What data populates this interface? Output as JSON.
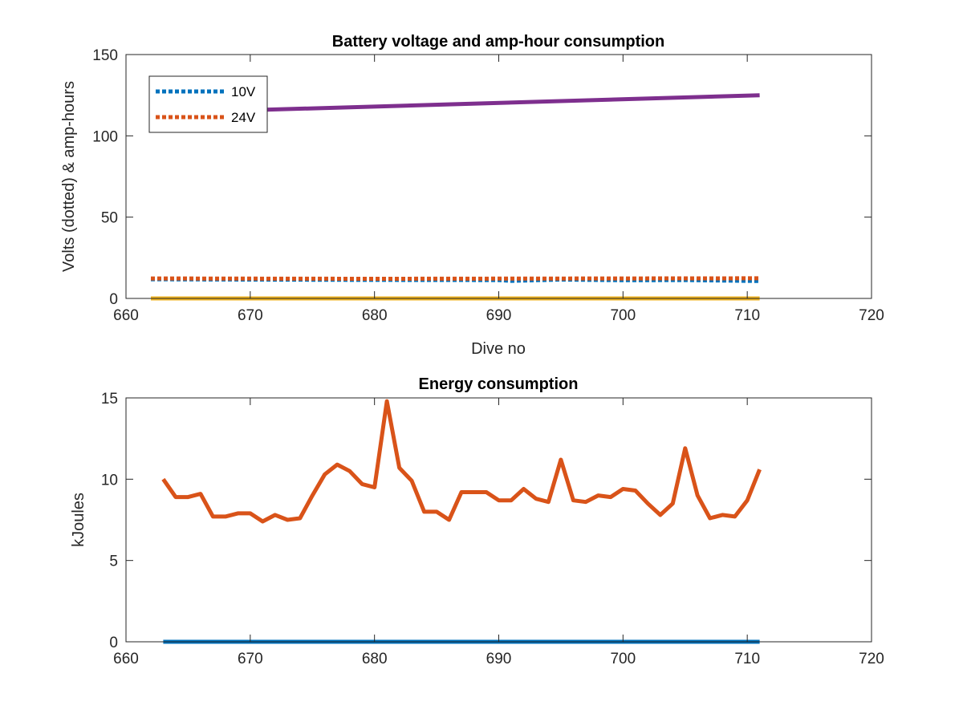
{
  "chart_data": [
    {
      "type": "line",
      "title": "Battery voltage and amp-hour consumption",
      "xlabel": "Dive no",
      "ylabel": "Volts (dotted) & amp-hours",
      "xlim": [
        660,
        720
      ],
      "ylim": [
        0,
        150
      ],
      "xticks": [
        660,
        670,
        680,
        690,
        700,
        710,
        720
      ],
      "yticks": [
        0,
        50,
        100,
        150
      ],
      "legend_position": "top-left",
      "series": [
        {
          "name": "10V",
          "style": "dotted",
          "color": "#0072BD",
          "x": [
            662,
            670,
            680,
            690,
            691,
            695,
            700,
            705,
            711
          ],
          "y": [
            11.8,
            11.6,
            11.4,
            11.3,
            10.8,
            11.6,
            11.2,
            11.3,
            10.7
          ]
        },
        {
          "name": "24V",
          "style": "dotted",
          "color": "#D95319",
          "x": [
            662,
            670,
            680,
            690,
            700,
            711
          ],
          "y": [
            12.3,
            12.2,
            12.1,
            12.2,
            12.3,
            12.4
          ]
        },
        {
          "style": "solid",
          "color": "#7E2F8E",
          "x": [
            662,
            711
          ],
          "y": [
            114,
            125
          ]
        },
        {
          "style": "solid",
          "color": "#EDB120",
          "x": [
            662,
            711
          ],
          "y": [
            0,
            0
          ]
        }
      ]
    },
    {
      "type": "line",
      "title": "Energy consumption",
      "xlabel": "",
      "ylabel": "kJoules",
      "xlim": [
        660,
        720
      ],
      "ylim": [
        0,
        15
      ],
      "xticks": [
        660,
        670,
        680,
        690,
        700,
        710,
        720
      ],
      "yticks": [
        0,
        5,
        10,
        15
      ],
      "series": [
        {
          "style": "solid",
          "color": "#D95319",
          "x": [
            663,
            664,
            665,
            666,
            667,
            668,
            669,
            670,
            671,
            672,
            673,
            674,
            675,
            676,
            677,
            678,
            679,
            680,
            681,
            682,
            683,
            684,
            685,
            686,
            687,
            688,
            689,
            690,
            691,
            692,
            693,
            694,
            695,
            696,
            697,
            698,
            699,
            700,
            701,
            702,
            703,
            704,
            705,
            706,
            707,
            708,
            709,
            710,
            711
          ],
          "y": [
            10.0,
            8.9,
            8.9,
            9.1,
            7.7,
            7.7,
            7.9,
            7.9,
            7.4,
            7.8,
            7.5,
            7.6,
            9.0,
            10.3,
            10.9,
            10.5,
            9.7,
            9.5,
            14.8,
            10.7,
            9.9,
            8.0,
            8.0,
            7.5,
            9.2,
            9.2,
            9.2,
            8.7,
            8.7,
            9.4,
            8.8,
            8.6,
            11.2,
            8.7,
            8.6,
            9.0,
            8.9,
            9.4,
            9.3,
            8.5,
            7.8,
            8.5,
            11.9,
            9.0,
            7.6,
            7.8,
            7.7,
            8.7,
            10.6
          ]
        },
        {
          "style": "solid",
          "color": "#0072BD",
          "x": [
            663,
            711
          ],
          "y": [
            0,
            0
          ]
        }
      ]
    }
  ]
}
